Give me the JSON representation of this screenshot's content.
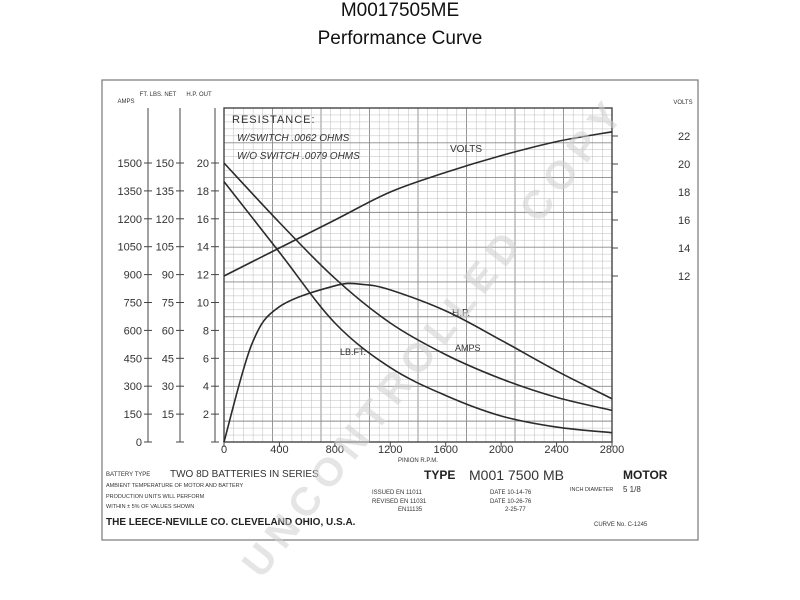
{
  "header": {
    "model": "M0017505ME",
    "subtitle": "Performance Curve"
  },
  "chart_data": {
    "type": "line",
    "x": {
      "label": "PINION R.P.M.",
      "ticks": [
        0,
        400,
        800,
        1200,
        1600,
        2000,
        2400,
        2800
      ],
      "range": [
        0,
        2800
      ]
    },
    "left_axes": [
      {
        "title": "AMPS",
        "ticks": [
          150,
          300,
          450,
          600,
          750,
          900,
          1050,
          1200,
          1350,
          1500
        ],
        "range": [
          0,
          1500
        ]
      },
      {
        "title": "FT. LBS. NET",
        "ticks": [
          15,
          30,
          45,
          60,
          75,
          90,
          105,
          120,
          135,
          150
        ],
        "range": [
          0,
          150
        ]
      },
      {
        "title": "H.P. OUT",
        "ticks": [
          2,
          4,
          6,
          8,
          10,
          12,
          14,
          16,
          18,
          20
        ],
        "range": [
          0,
          20
        ]
      }
    ],
    "right_axis": {
      "title": "VOLTS",
      "ticks": [
        12,
        14,
        16,
        18,
        20,
        22
      ],
      "range": [
        0,
        22
      ]
    },
    "grid": true,
    "resistance": {
      "title": "RESISTANCE:",
      "with_switch": "W/SWITCH .0062 OHMS",
      "without_switch": "W/O SWITCH .0079 OHMS"
    },
    "series": [
      {
        "name": "VOLTS",
        "axis": "right",
        "points": [
          [
            0,
            12
          ],
          [
            400,
            14
          ],
          [
            800,
            16
          ],
          [
            1200,
            18
          ],
          [
            1600,
            19.4
          ],
          [
            2000,
            20.6
          ],
          [
            2400,
            21.6
          ],
          [
            2800,
            22.3
          ]
        ]
      },
      {
        "name": "AMPS",
        "axis": "amps",
        "points": [
          [
            0,
            1500
          ],
          [
            400,
            1180
          ],
          [
            800,
            880
          ],
          [
            1200,
            640
          ],
          [
            1600,
            470
          ],
          [
            2000,
            340
          ],
          [
            2400,
            240
          ],
          [
            2800,
            170
          ]
        ]
      },
      {
        "name": "LB.FT.",
        "axis": "lbft",
        "points": [
          [
            0,
            140
          ],
          [
            400,
            102
          ],
          [
            800,
            64
          ],
          [
            1200,
            40
          ],
          [
            1600,
            25
          ],
          [
            2000,
            14
          ],
          [
            2400,
            8
          ],
          [
            2800,
            5
          ]
        ]
      },
      {
        "name": "H.P.",
        "axis": "hp",
        "points": [
          [
            0,
            0
          ],
          [
            200,
            7
          ],
          [
            400,
            9.7
          ],
          [
            800,
            11.2
          ],
          [
            1000,
            11.3
          ],
          [
            1200,
            10.9
          ],
          [
            1600,
            9.4
          ],
          [
            2000,
            7.3
          ],
          [
            2400,
            5.1
          ],
          [
            2800,
            3.1
          ]
        ]
      }
    ]
  },
  "spec": {
    "battery_type_label": "BATTERY TYPE",
    "battery_type_value": "TWO 8D BATTERIES IN SERIES",
    "ambient_line": "AMBIENT TEMPERATURE OF MOTOR AND BATTERY",
    "production_line1": "PRODUCTION UNITS WILL PERFORM",
    "production_line2": "WITHIN ± 5% OF VALUES SHOWN",
    "company": "THE LEECE-NEVILLE CO. CLEVELAND OHIO, U.S.A.",
    "type_label": "TYPE",
    "type_value": "M001 7500 MB",
    "motor_label": "MOTOR",
    "issued": "ISSUED EN 11011",
    "revised1": "REVISED EN 11031",
    "revised2": "EN11135",
    "date1": "DATE 10-14-76",
    "date2": "DATE 10-26-76",
    "date3": "2-25-77",
    "inch_diameter_label": "INCH DIAMETER",
    "inch_diameter_value": "5 1/8",
    "curve_no": "CURVE No. C-1245"
  },
  "watermark": "UNCONTROLLED COPY"
}
